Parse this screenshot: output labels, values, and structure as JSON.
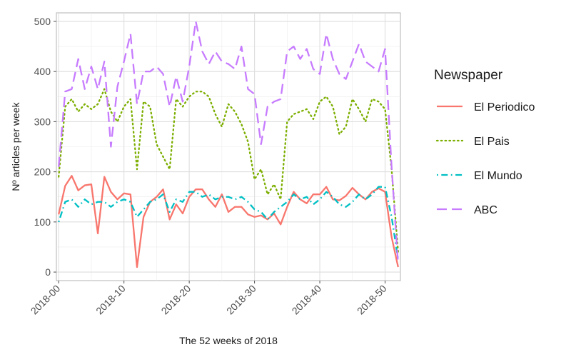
{
  "chart_data": {
    "type": "line",
    "title": "",
    "xlabel": "The 52 weeks of 2018",
    "ylabel": "Nº articles per week",
    "xlim": [
      0,
      52
    ],
    "ylim": [
      0,
      500
    ],
    "x_ticks": [
      0,
      10,
      20,
      30,
      40,
      50
    ],
    "x_tick_labels": [
      "2018-00",
      "2018-10",
      "2018-20",
      "2018-30",
      "2018-40",
      "2018-50"
    ],
    "y_ticks": [
      0,
      100,
      200,
      300,
      400,
      500
    ],
    "y_tick_labels": [
      "0",
      "100",
      "200",
      "300",
      "400",
      "500"
    ],
    "grid": true,
    "legend_title": "Newspaper",
    "legend_position": "right",
    "x": [
      0,
      1,
      2,
      3,
      4,
      5,
      6,
      7,
      8,
      9,
      10,
      11,
      12,
      13,
      14,
      15,
      16,
      17,
      18,
      19,
      20,
      21,
      22,
      23,
      24,
      25,
      26,
      27,
      28,
      29,
      30,
      31,
      32,
      33,
      34,
      35,
      36,
      37,
      38,
      39,
      40,
      41,
      42,
      43,
      44,
      45,
      46,
      47,
      48,
      49,
      50,
      51,
      52
    ],
    "series": [
      {
        "name": "El Periodico",
        "color": "#F8766D",
        "dash": "solid",
        "values": [
          115,
          172,
          192,
          163,
          173,
          175,
          77,
          190,
          160,
          145,
          157,
          155,
          10,
          110,
          140,
          150,
          165,
          105,
          135,
          117,
          150,
          165,
          165,
          145,
          130,
          155,
          120,
          130,
          130,
          115,
          110,
          113,
          105,
          117,
          95,
          130,
          160,
          145,
          137,
          155,
          155,
          170,
          145,
          143,
          152,
          168,
          155,
          145,
          160,
          167,
          160,
          70,
          10
        ]
      },
      {
        "name": "El Pais",
        "color": "#7CAE00",
        "dash": "dotted",
        "values": [
          190,
          330,
          345,
          320,
          335,
          325,
          335,
          365,
          320,
          300,
          330,
          345,
          205,
          340,
          330,
          255,
          230,
          205,
          345,
          330,
          350,
          360,
          360,
          350,
          315,
          290,
          335,
          320,
          295,
          260,
          185,
          205,
          155,
          175,
          145,
          300,
          315,
          320,
          325,
          305,
          340,
          350,
          330,
          275,
          290,
          345,
          325,
          300,
          345,
          340,
          325,
          205,
          40
        ]
      },
      {
        "name": "El Mundo",
        "color": "#00BFC4",
        "dash": "dashdot",
        "values": [
          100,
          140,
          145,
          130,
          145,
          135,
          140,
          140,
          130,
          140,
          145,
          140,
          110,
          125,
          140,
          145,
          155,
          120,
          145,
          140,
          160,
          160,
          150,
          155,
          145,
          150,
          150,
          145,
          150,
          140,
          125,
          120,
          105,
          120,
          130,
          140,
          155,
          145,
          150,
          135,
          145,
          160,
          150,
          135,
          130,
          140,
          155,
          145,
          155,
          170,
          170,
          110,
          25
        ]
      },
      {
        "name": "ABC",
        "color": "#C77CFF",
        "dash": "longdash",
        "values": [
          210,
          360,
          365,
          425,
          365,
          410,
          365,
          420,
          250,
          370,
          420,
          475,
          335,
          400,
          400,
          410,
          395,
          330,
          390,
          340,
          410,
          500,
          440,
          415,
          440,
          420,
          415,
          405,
          450,
          365,
          355,
          255,
          330,
          340,
          345,
          440,
          450,
          425,
          445,
          405,
          395,
          475,
          425,
          395,
          385,
          420,
          455,
          420,
          410,
          400,
          445,
          210,
          15
        ]
      }
    ]
  }
}
